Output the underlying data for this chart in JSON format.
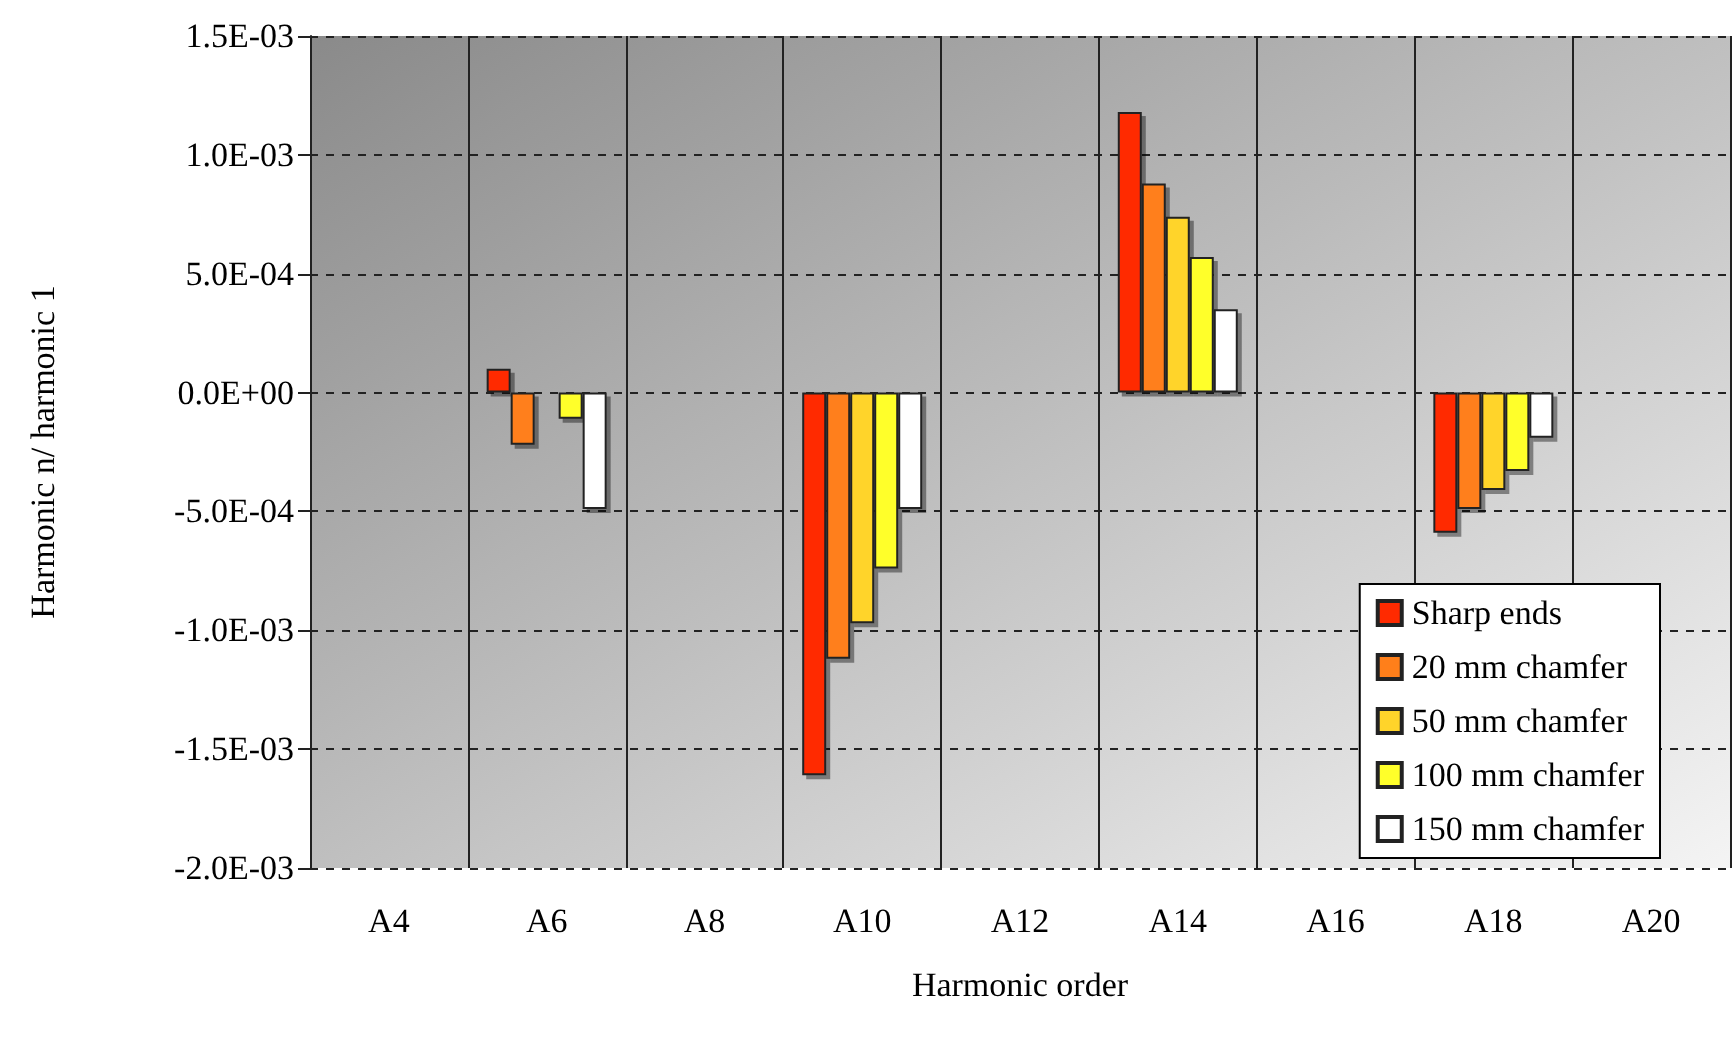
{
  "chart_data": {
    "type": "bar",
    "xlabel": "Harmonic order",
    "ylabel": "Harmonic n/ harmonic 1",
    "categories": [
      "A4",
      "A6",
      "A8",
      "A10",
      "A12",
      "A14",
      "A16",
      "A18",
      "A20"
    ],
    "series": [
      {
        "name": "Sharp ends",
        "color": "#ff2a00",
        "values": [
          null,
          0.0001,
          null,
          -0.00161,
          null,
          0.00118,
          null,
          -0.00059,
          null
        ]
      },
      {
        "name": "20 mm chamfer",
        "color": "#ff7f1a",
        "values": [
          null,
          -0.00022,
          null,
          -0.00112,
          null,
          0.00088,
          null,
          -0.00049,
          null
        ]
      },
      {
        "name": "50 mm chamfer",
        "color": "#ffd42a",
        "values": [
          null,
          null,
          null,
          -0.00097,
          null,
          0.00074,
          null,
          -0.00041,
          null
        ]
      },
      {
        "name": "100 mm chamfer",
        "color": "#ffff2a",
        "values": [
          null,
          -0.00011,
          null,
          -0.00074,
          null,
          0.00057,
          null,
          -0.00033,
          null
        ]
      },
      {
        "name": "150 mm chamfer",
        "color": "#ffffff",
        "values": [
          null,
          -0.00049,
          null,
          -0.00049,
          null,
          0.00035,
          null,
          -0.00019,
          null
        ]
      }
    ],
    "ylim": [
      -0.002,
      0.0015
    ],
    "yticks": [
      {
        "value": -0.002,
        "label": "-2.0E-03"
      },
      {
        "value": -0.0015,
        "label": "-1.5E-03"
      },
      {
        "value": -0.001,
        "label": "-1.0E-03"
      },
      {
        "value": -0.0005,
        "label": "-5.0E-04"
      },
      {
        "value": 0,
        "label": "0.0E+00"
      },
      {
        "value": 0.0005,
        "label": "5.0E-04"
      },
      {
        "value": 0.001,
        "label": "1.0E-03"
      },
      {
        "value": 0.0015,
        "label": "1.5E-03"
      }
    ],
    "grid": true,
    "legend": "bottom right"
  }
}
